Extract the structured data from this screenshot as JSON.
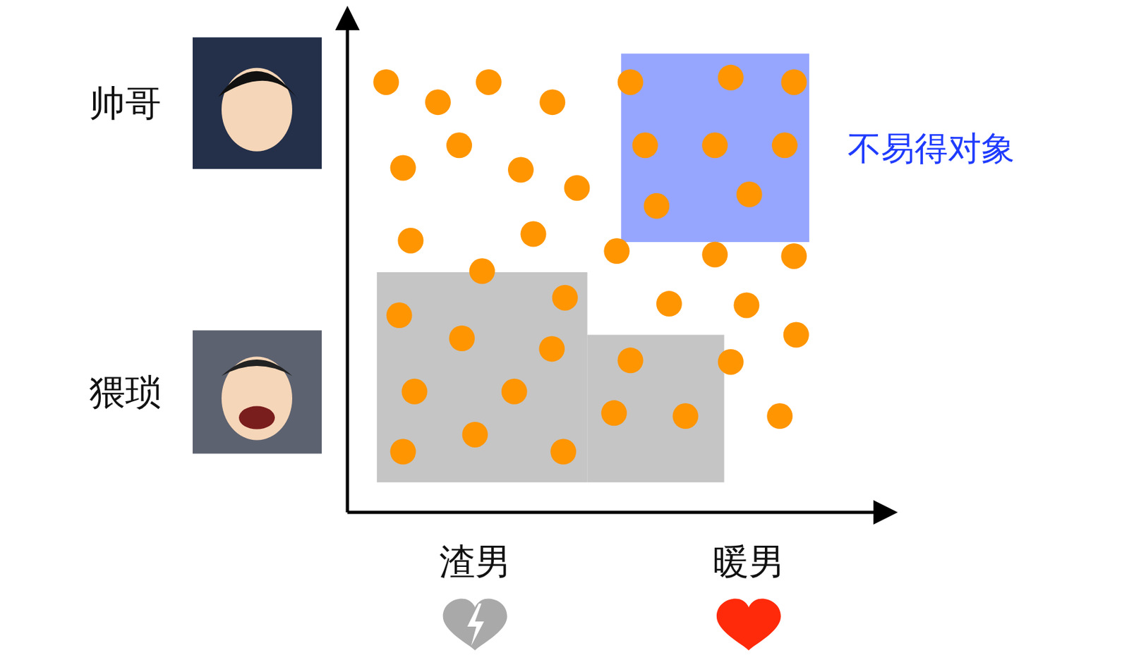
{
  "chart_data": {
    "type": "scatter",
    "color": "#ff9500",
    "xlim": [
      0,
      100
    ],
    "ylim": [
      0,
      100
    ],
    "xticks": [
      {
        "value": 23.4,
        "label": "渣男"
      },
      {
        "value": 73.6,
        "label": "暖男"
      }
    ],
    "yticks": [
      {
        "value": 24.0,
        "label": "猥琐"
      },
      {
        "value": 81.6,
        "label": "帅哥"
      }
    ],
    "x": [
      7.1,
      16.6,
      25.9,
      37.6,
      20.5,
      10.2,
      31.8,
      42.1,
      11.6,
      34.1,
      49.4,
      67.4,
      81.9,
      59.0,
      73.2,
      82.3,
      70.3,
      79.3,
      51.9,
      70.3,
      81.9,
      54.6,
      67.4,
      80.2,
      56.7,
      73.7,
      24.7,
      39.9,
      9.5,
      21.0,
      37.5,
      51.9,
      12.3,
      30.6,
      48.9,
      62.0,
      23.4,
      10.2,
      39.6
    ],
    "values": [
      85.8,
      81.8,
      85.8,
      81.8,
      73.2,
      68.7,
      68.3,
      64.7,
      54.2,
      55.5,
      52.1,
      51.4,
      51.1,
      41.6,
      41.3,
      35.4,
      30.0,
      19.2,
      85.8,
      86.7,
      85.8,
      73.2,
      73.2,
      73.2,
      61.1,
      63.4,
      48.1,
      42.8,
      39.3,
      34.7,
      32.6,
      30.3,
      24.1,
      24.1,
      19.8,
      19.2,
      15.5,
      12.1,
      12.1
    ],
    "regions": [
      {
        "label": "不易得对象",
        "color": "#7f93ff",
        "rects": [
          {
            "x": [
              50.2,
              84.7
            ],
            "y": [
              53.9,
              91.5
            ]
          }
        ]
      },
      {
        "color": "#b8b8b8",
        "rects": [
          {
            "x": [
              5.4,
              44.0
            ],
            "y": [
              6.0,
              47.9
            ]
          },
          {
            "x": [
              44.0,
              69.1
            ],
            "y": [
              6.0,
              35.4
            ]
          }
        ]
      }
    ]
  }
}
